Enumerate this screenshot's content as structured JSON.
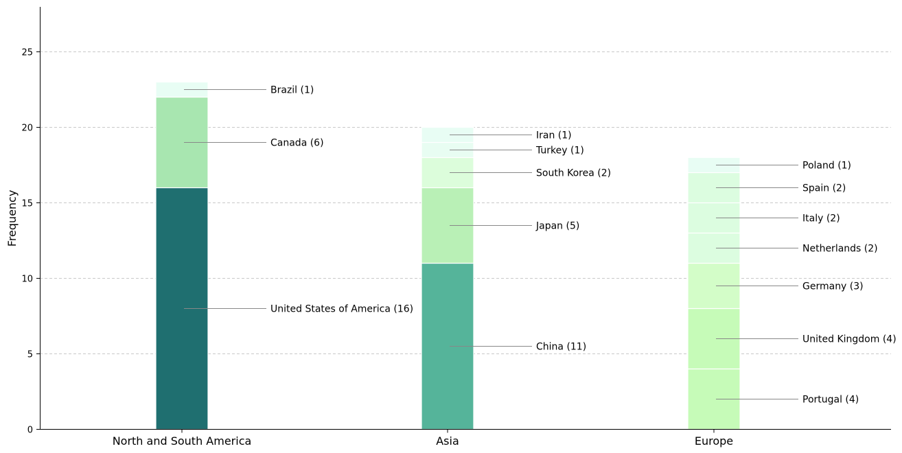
{
  "chart_data": {
    "type": "bar",
    "stacked": true,
    "title": "",
    "xlabel": "",
    "ylabel": "Frequency",
    "ylim": [
      0,
      28
    ],
    "yticks": [
      0,
      5,
      10,
      15,
      20,
      25
    ],
    "grid": "horizontal dashed",
    "groups": [
      {
        "category": "North and South America",
        "segments": [
          {
            "label": "United States of America (16)",
            "value": 16,
            "color": "#1f6f70"
          },
          {
            "label": "Canada (6)",
            "value": 6,
            "color": "#a8e6b0"
          },
          {
            "label": "Brazil (1)",
            "value": 1,
            "color": "#e8fdf4"
          }
        ]
      },
      {
        "category": "Asia",
        "segments": [
          {
            "label": "China (11)",
            "value": 11,
            "color": "#55b49a"
          },
          {
            "label": "Japan (5)",
            "value": 5,
            "color": "#b9f0b6"
          },
          {
            "label": "South Korea (2)",
            "value": 2,
            "color": "#dcfddb"
          },
          {
            "label": "Turkey (1)",
            "value": 1,
            "color": "#e8fdf2"
          },
          {
            "label": "Iran (1)",
            "value": 1,
            "color": "#e8fdf4"
          }
        ]
      },
      {
        "category": "Europe",
        "segments": [
          {
            "label": "Portugal (4)",
            "value": 4,
            "color": "#c6fbb8"
          },
          {
            "label": "United Kingdom (4)",
            "value": 4,
            "color": "#c6fbb8"
          },
          {
            "label": "Germany (3)",
            "value": 3,
            "color": "#d3fdc8"
          },
          {
            "label": "Netherlands (2)",
            "value": 2,
            "color": "#dcfde0"
          },
          {
            "label": "Italy (2)",
            "value": 2,
            "color": "#dcfde0"
          },
          {
            "label": "Spain (2)",
            "value": 2,
            "color": "#dcfde0"
          },
          {
            "label": "Poland (1)",
            "value": 1,
            "color": "#e8fdf4"
          }
        ]
      }
    ]
  }
}
